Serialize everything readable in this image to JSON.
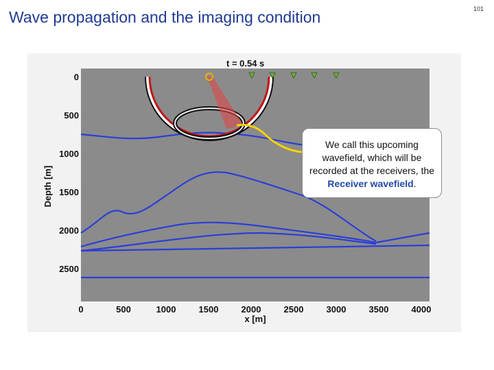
{
  "slide": {
    "title": "Wave propagation and the imaging condition",
    "page_number": "101"
  },
  "figure": {
    "time_label": "t = 0.54 s",
    "y_label": "Depth [m]",
    "x_label": "x [m]",
    "y_ticks": [
      "0",
      "500",
      "1000",
      "1500",
      "2000",
      "2500"
    ],
    "x_ticks": [
      "0",
      "500",
      "1000",
      "1500",
      "2000",
      "2500",
      "3000",
      "3500",
      "4000"
    ]
  },
  "callout": {
    "text_parts": [
      "We call this upcoming wavefield, which will be recorded at the receivers, the ",
      "Receiver wavefield",
      "."
    ]
  }
}
